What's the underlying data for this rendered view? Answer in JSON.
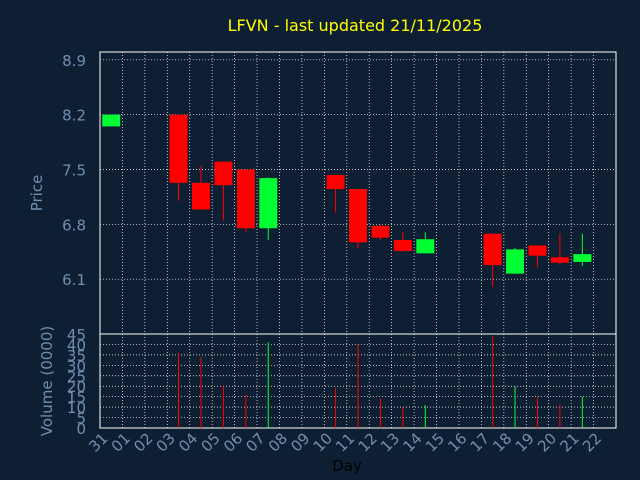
{
  "chart_data": {
    "type": "candlestick",
    "title": "LFVN - last updated 21/11/2025",
    "xlabel": "Day",
    "ylabel": "Price",
    "volume_label": "Volume (0000)",
    "x_tick_labels": [
      "31",
      "01",
      "02",
      "03",
      "04",
      "05",
      "06",
      "07",
      "08",
      "09",
      "10",
      "11",
      "12",
      "13",
      "14",
      "15",
      "16",
      "17",
      "18",
      "19",
      "20",
      "21",
      "22"
    ],
    "price_ticks": [
      "8.9",
      "8.2",
      "7.5",
      "6.8",
      "6.1"
    ],
    "price_ylim": [
      5.4,
      9.0
    ],
    "volume_ticks": [
      "0",
      "5",
      "10",
      "15",
      "20",
      "25",
      "30",
      "35",
      "40",
      "45"
    ],
    "volume_ylim": [
      0,
      45
    ],
    "grid": true,
    "colors": {
      "background": "#0f1f33",
      "up": "#00ff33",
      "down": "#ff0000",
      "axis": "#ffffff",
      "title": "#ffff00",
      "label": "#6f8fb0"
    },
    "candles": [
      {
        "day": "31",
        "open": 8.05,
        "high": 8.2,
        "low": 8.05,
        "close": 8.2,
        "volume": 0
      },
      {
        "day": "03",
        "open": 8.2,
        "high": 8.2,
        "low": 7.1,
        "close": 7.33,
        "volume": 36
      },
      {
        "day": "04",
        "open": 7.33,
        "high": 7.55,
        "low": 7.0,
        "close": 6.99,
        "volume": 34
      },
      {
        "day": "05",
        "open": 7.6,
        "high": 7.6,
        "low": 6.85,
        "close": 7.3,
        "volume": 20
      },
      {
        "day": "06",
        "open": 7.5,
        "high": 7.5,
        "low": 6.7,
        "close": 6.75,
        "volume": 16
      },
      {
        "day": "07",
        "open": 6.75,
        "high": 7.4,
        "low": 6.6,
        "close": 7.39,
        "volume": 41
      },
      {
        "day": "10",
        "open": 7.43,
        "high": 7.43,
        "low": 6.95,
        "close": 7.25,
        "volume": 19
      },
      {
        "day": "11",
        "open": 7.25,
        "high": 7.25,
        "low": 6.5,
        "close": 6.57,
        "volume": 40
      },
      {
        "day": "12",
        "open": 6.78,
        "high": 6.8,
        "low": 6.6,
        "close": 6.63,
        "volume": 14
      },
      {
        "day": "13",
        "open": 6.6,
        "high": 6.7,
        "low": 6.45,
        "close": 6.46,
        "volume": 10
      },
      {
        "day": "14",
        "open": 6.43,
        "high": 6.7,
        "low": 6.43,
        "close": 6.61,
        "volume": 11
      },
      {
        "day": "17",
        "open": 6.68,
        "high": 6.68,
        "low": 6.0,
        "close": 6.28,
        "volume": 44
      },
      {
        "day": "18",
        "open": 6.17,
        "high": 6.5,
        "low": 6.17,
        "close": 6.48,
        "volume": 20
      },
      {
        "day": "19",
        "open": 6.53,
        "high": 6.53,
        "low": 6.25,
        "close": 6.4,
        "volume": 15
      },
      {
        "day": "20",
        "open": 6.38,
        "high": 6.68,
        "low": 6.28,
        "close": 6.31,
        "volume": 11
      },
      {
        "day": "21",
        "open": 6.32,
        "high": 6.68,
        "low": 6.27,
        "close": 6.42,
        "volume": 15
      }
    ]
  }
}
